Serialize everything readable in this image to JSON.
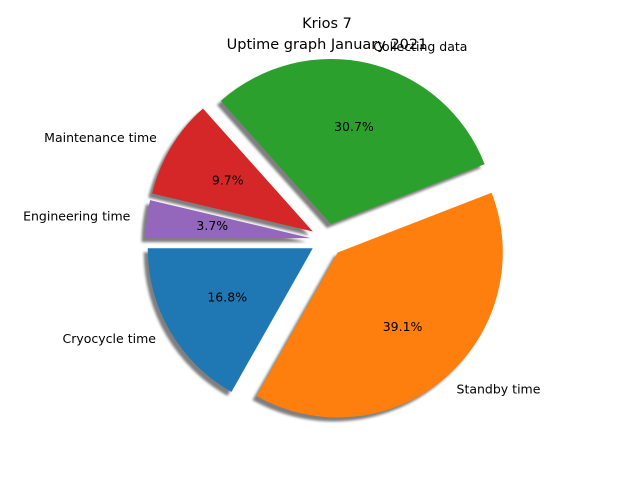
{
  "chart_data": {
    "type": "pie",
    "title": "Krios 7",
    "subtitle": "Uptime graph January 2021",
    "slices": [
      {
        "label": "Cryocycle time",
        "value": 16.8,
        "pct_label": "16.8%",
        "color": "#1f77b4"
      },
      {
        "label": "Standby time",
        "value": 39.1,
        "pct_label": "39.1%",
        "color": "#ff7f0e"
      },
      {
        "label": "Collecting data",
        "value": 30.7,
        "pct_label": "30.7%",
        "color": "#2ca02c"
      },
      {
        "label": "Maintenance time",
        "value": 9.7,
        "pct_label": "9.7%",
        "color": "#d62728"
      },
      {
        "label": "Engineering time",
        "value": 3.7,
        "pct_label": "3.7%",
        "color": "#9467bd"
      }
    ],
    "start_angle_deg": 180,
    "direction": "counterclockwise",
    "exploded": true,
    "shadow": true,
    "legend": "none"
  }
}
